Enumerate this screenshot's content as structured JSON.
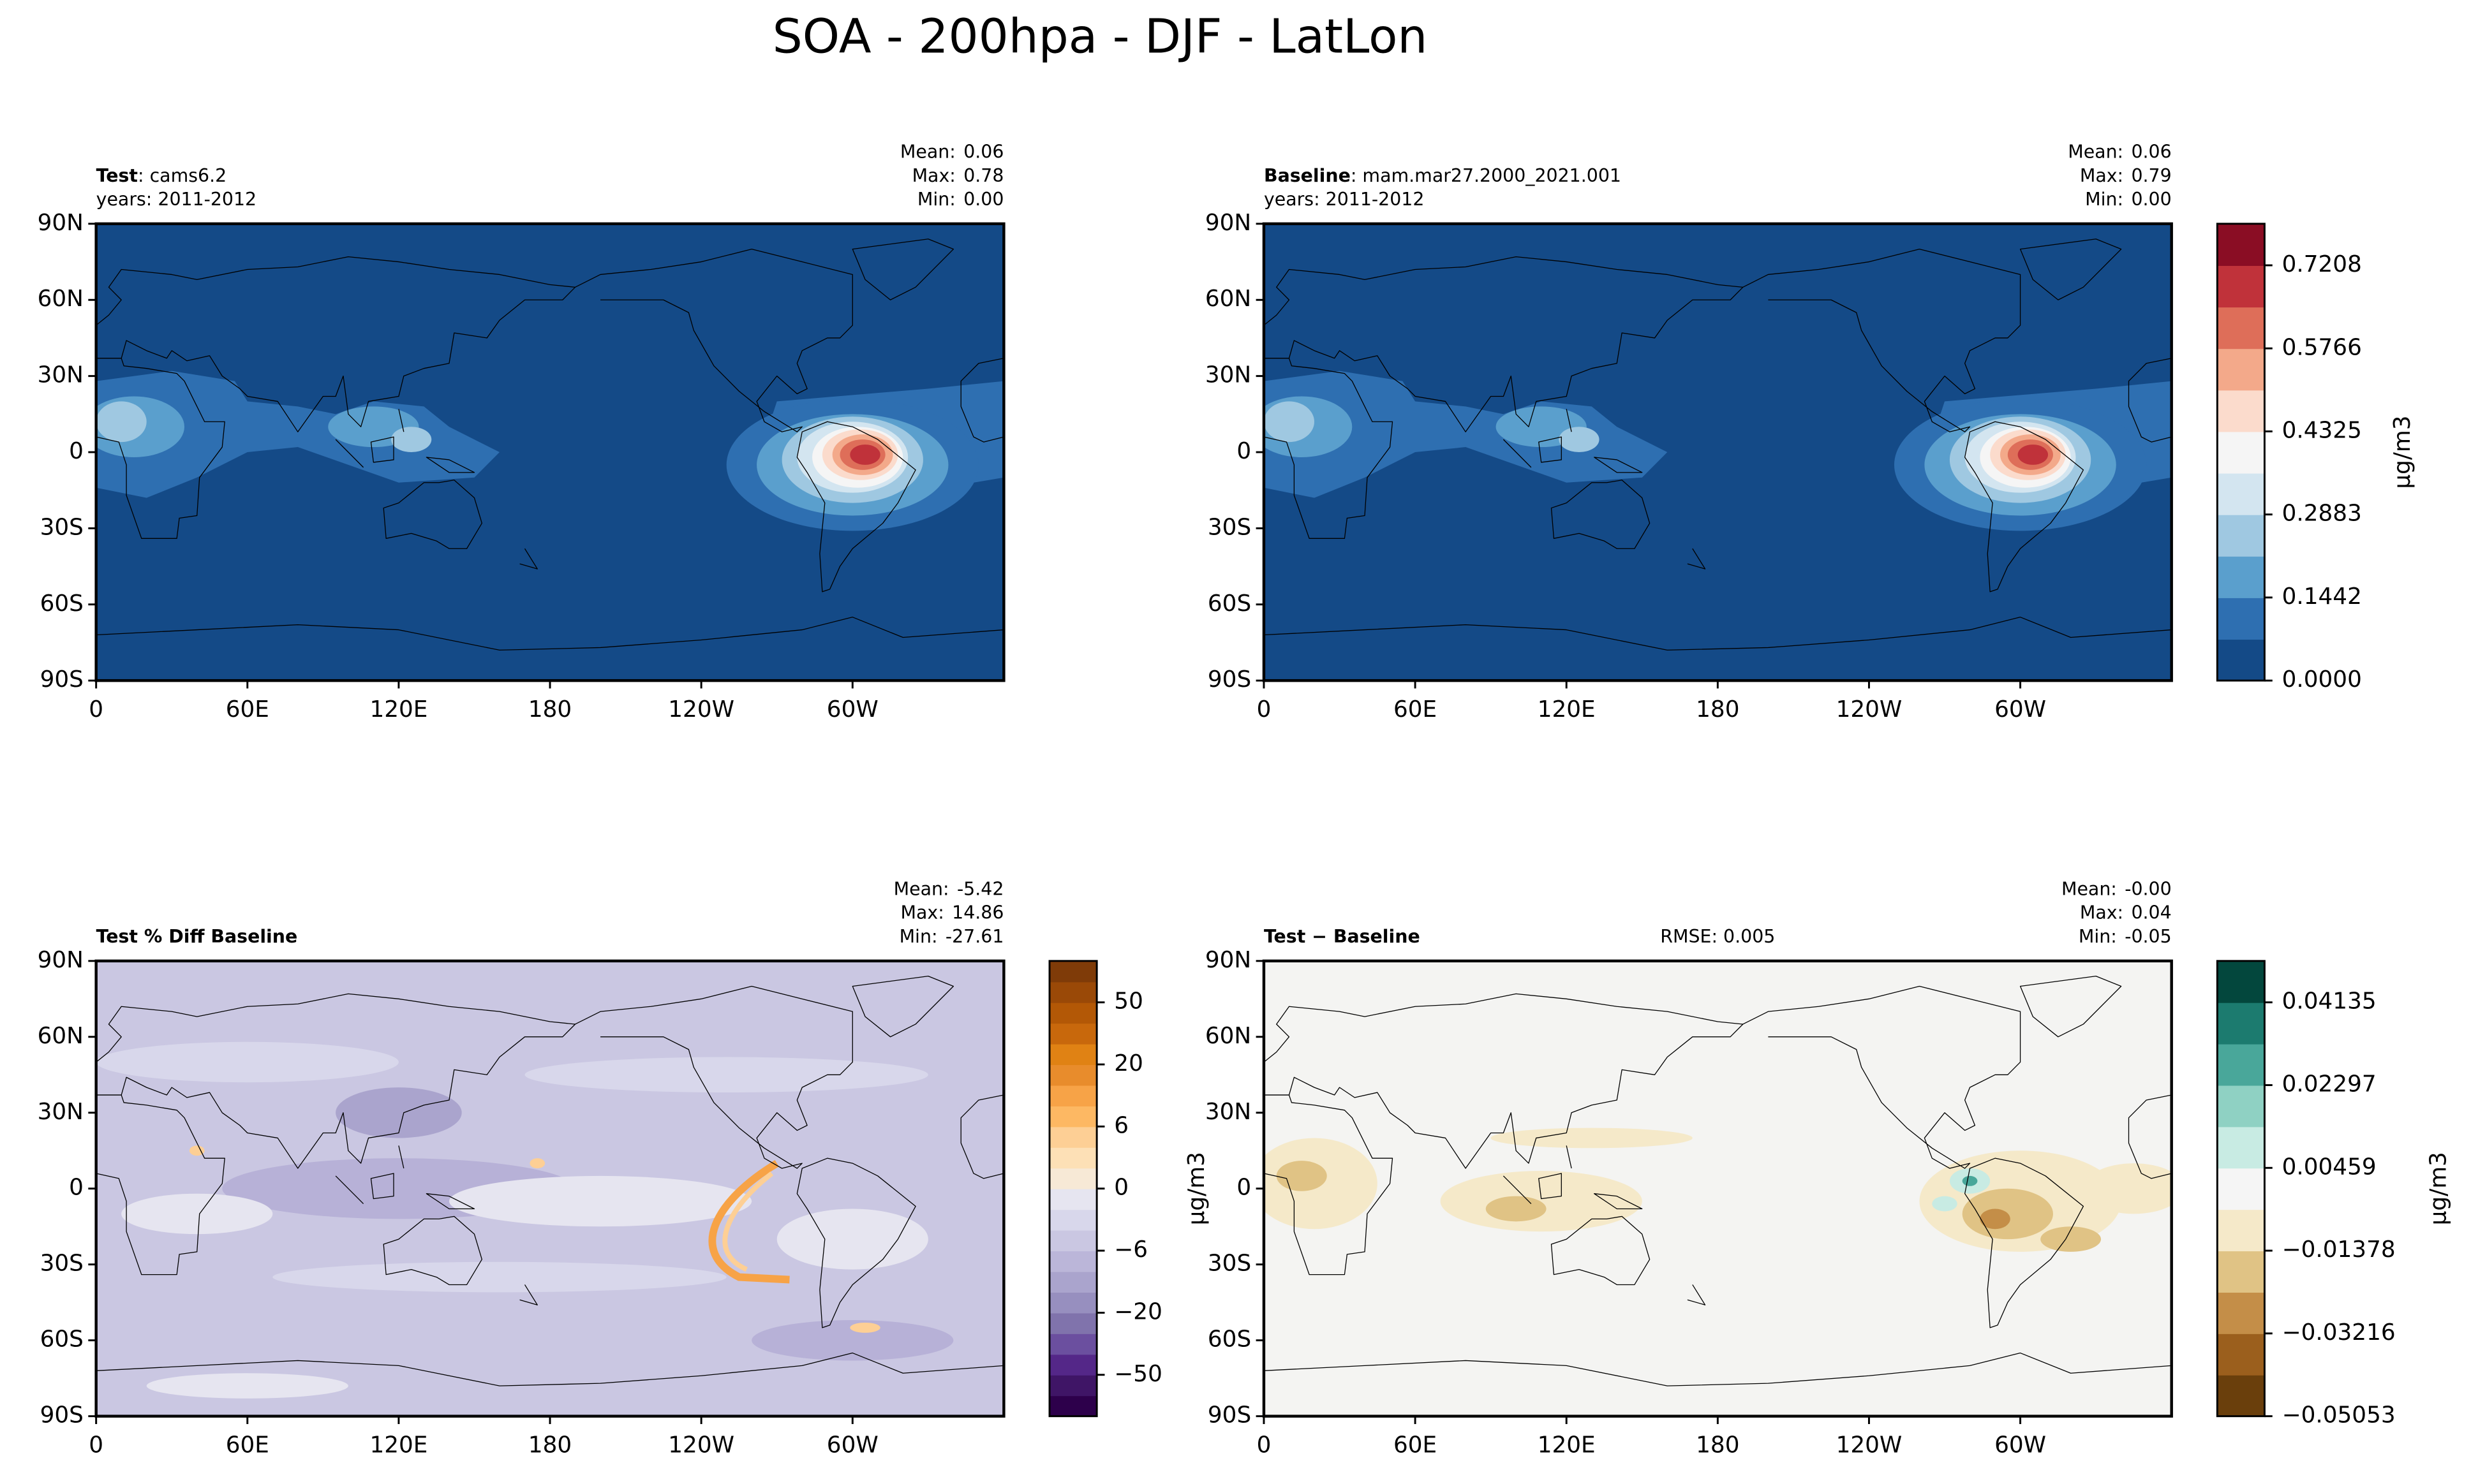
{
  "title": "SOA - 200hpa - DJF - LatLon",
  "chart_data": [
    {
      "type": "map",
      "title": {
        "bold": "Test",
        "text": ": cams6.2"
      },
      "years": "years: 2011-2012",
      "stats": {
        "labels": [
          "Mean:",
          "Max:",
          "Min:"
        ],
        "values": [
          0.06,
          0.78,
          0
        ],
        "value_labels": [
          "0.06",
          "0.78",
          "0.00"
        ]
      },
      "xlim": [
        0,
        360
      ],
      "ylim": [
        -90,
        90
      ],
      "xticks": [
        0,
        {
          "value": 60,
          "label": "60E"
        },
        {
          "value": 120,
          "label": "120E"
        },
        180,
        {
          "value": 240,
          "label": "120W"
        },
        {
          "value": 300,
          "label": "60W"
        }
      ],
      "yticks": [
        {
          "value": 90,
          "label": "90N"
        },
        {
          "value": 60,
          "label": "60N"
        },
        {
          "value": 30,
          "label": "30N"
        },
        0,
        {
          "value": -30,
          "label": "30S"
        },
        {
          "value": -60,
          "label": "60S"
        },
        {
          "value": -90,
          "label": "90S"
        }
      ]
    },
    {
      "type": "map",
      "title": {
        "bold": "Baseline",
        "text": ": mam.mar27.2000_2021.001"
      },
      "years": "years: 2011-2012",
      "stats": {
        "labels": [
          "Mean:",
          "Max:",
          "Min:"
        ],
        "values": [
          0.06,
          0.79,
          0
        ],
        "value_labels": [
          "0.06",
          "0.79",
          "0.00"
        ]
      },
      "xlim": [
        0,
        360
      ],
      "ylim": [
        -90,
        90
      ],
      "xticks": [
        0,
        {
          "value": 60,
          "label": "60E"
        },
        {
          "value": 120,
          "label": "120E"
        },
        180,
        {
          "value": 240,
          "label": "120W"
        },
        {
          "value": 300,
          "label": "60W"
        }
      ],
      "yticks": [
        {
          "value": 90,
          "label": "90N"
        },
        {
          "value": 60,
          "label": "60N"
        },
        {
          "value": 30,
          "label": "30N"
        },
        0,
        {
          "value": -30,
          "label": "30S"
        },
        {
          "value": -60,
          "label": "60S"
        },
        {
          "value": -90,
          "label": "90S"
        }
      ],
      "colorbar": {
        "label": "μg/m3",
        "levels": [
          0,
          0.07208,
          0.14417,
          0.21625,
          0.28833,
          0.36042,
          0.4325,
          0.50458,
          0.57667,
          0.64875,
          0.72083,
          0.79292
        ],
        "colors": [
          "#144a87",
          "#2e6fb1",
          "#5a9fcd",
          "#9fc8e1",
          "#d3e5f0",
          "#f5f5f5",
          "#fbdbcc",
          "#f3a98a",
          "#de6e59",
          "#c0323a",
          "#8a0d24"
        ],
        "ticks": [
          {
            "value": 0,
            "label": "0.0000"
          },
          0.1442,
          0.2883,
          0.4325,
          0.5766,
          0.7208
        ]
      }
    },
    {
      "type": "map",
      "title": {
        "bold": "Test % Diff Baseline"
      },
      "stats": {
        "labels": [
          "Mean:",
          "Max:",
          "Min:"
        ],
        "values": [
          -5.42,
          14.86,
          -27.61
        ],
        "value_labels": [
          "-5.42",
          "14.86",
          "-27.61"
        ]
      },
      "xlim": [
        0,
        360
      ],
      "ylim": [
        -90,
        90
      ],
      "xticks": [
        0,
        {
          "value": 60,
          "label": "60E"
        },
        {
          "value": 120,
          "label": "120E"
        },
        180,
        {
          "value": 240,
          "label": "120W"
        },
        {
          "value": 300,
          "label": "60W"
        }
      ],
      "yticks": [
        {
          "value": 90,
          "label": "90N"
        },
        {
          "value": 60,
          "label": "60N"
        },
        {
          "value": 30,
          "label": "30N"
        },
        0,
        {
          "value": -30,
          "label": "30S"
        },
        {
          "value": -60,
          "label": "60S"
        },
        {
          "value": -90,
          "label": "90S"
        }
      ],
      "colorbar": {
        "label": "μg/m3",
        "levels": [
          -100,
          -75,
          -50,
          -40,
          -30,
          -20,
          -15,
          -10,
          -6,
          -4,
          -2,
          0,
          2,
          4,
          6,
          10,
          15,
          20,
          30,
          40,
          50,
          75,
          100
        ],
        "colors": [
          "#2d004b",
          "#3f1566",
          "#542788",
          "#6b4f9f",
          "#8073ac",
          "#978fbf",
          "#aaa4cd",
          "#bbb6d9",
          "#cac7e2",
          "#d8d7eb",
          "#e6e5f0",
          "#f7e9d6",
          "#fde0b6",
          "#fdcf95",
          "#fdb863",
          "#f7a347",
          "#e88c2c",
          "#e08214",
          "#c8680c",
          "#b35806",
          "#9a4907",
          "#7f3b08"
        ],
        "ticks": [
          {
            "value": -50,
            "label": "−50"
          },
          {
            "value": -20,
            "label": "−20"
          },
          {
            "value": -6,
            "label": "−6"
          },
          0,
          6,
          20,
          50
        ]
      }
    },
    {
      "type": "map",
      "title": {
        "bold": "Test − Baseline"
      },
      "annotation": "RMSE: 0.005",
      "stats": {
        "labels": [
          "Mean:",
          "Max:",
          "Min:"
        ],
        "values": [
          0,
          0.04,
          -0.05
        ],
        "value_labels": [
          "-0.00",
          "0.04",
          "-0.05"
        ]
      },
      "xlim": [
        0,
        360
      ],
      "ylim": [
        -90,
        90
      ],
      "xticks": [
        0,
        {
          "value": 60,
          "label": "60E"
        },
        {
          "value": 120,
          "label": "120E"
        },
        180,
        {
          "value": 240,
          "label": "120W"
        },
        {
          "value": 300,
          "label": "60W"
        }
      ],
      "yticks": [
        {
          "value": 90,
          "label": "90N"
        },
        {
          "value": 60,
          "label": "60N"
        },
        {
          "value": 30,
          "label": "30N"
        },
        0,
        {
          "value": -30,
          "label": "30S"
        },
        {
          "value": -60,
          "label": "60S"
        },
        {
          "value": -90,
          "label": "90S"
        }
      ],
      "colorbar": {
        "label": "μg/m3",
        "levels": [
          -0.05053,
          -0.04134,
          -0.03216,
          -0.02297,
          -0.01378,
          -0.00459,
          0.00459,
          0.01378,
          0.02297,
          0.03216,
          0.04135,
          0.05053
        ],
        "colors": [
          "#6a3f0c",
          "#9b5f1d",
          "#c48e48",
          "#e0c385",
          "#f5e9c9",
          "#f5f5f5",
          "#c8ebe3",
          "#8fd1c3",
          "#49a79a",
          "#1c7b6f",
          "#03473d"
        ],
        "ticks": [
          {
            "value": -0.05053,
            "label": "−0.05053"
          },
          {
            "value": -0.03216,
            "label": "−0.03216"
          },
          {
            "value": -0.01378,
            "label": "−0.01378"
          },
          0.00459,
          0.02297,
          0.04135
        ]
      }
    }
  ]
}
